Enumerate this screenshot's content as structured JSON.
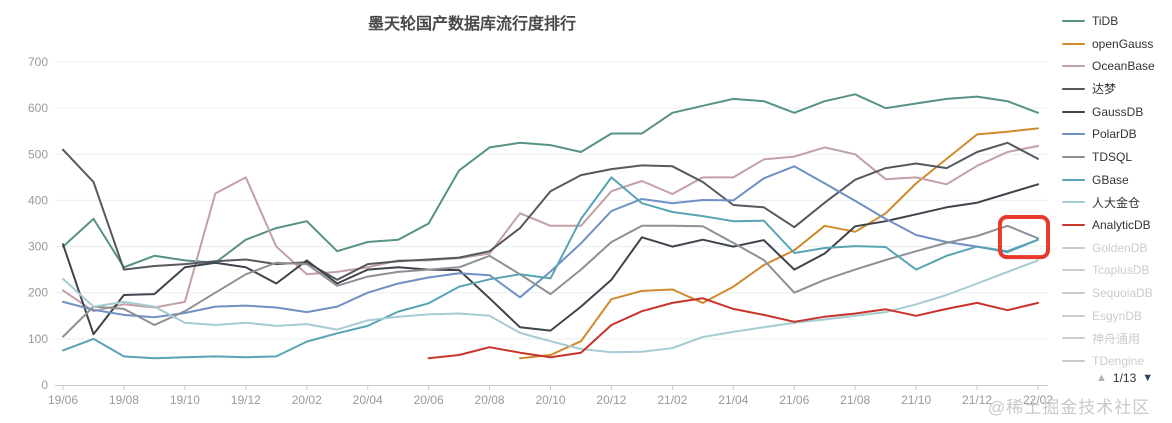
{
  "title": "墨天轮国产数据库流行度排行",
  "watermark": "@稀土掘金技术社区",
  "pagination": {
    "up_icon": "▲",
    "current_page": "1/13",
    "down_icon": "▼"
  },
  "colors": {
    "axis_label": "#999999",
    "axis_line": "#cccccc",
    "grid_line": "#e9edf1",
    "legend_text": "#333333",
    "legend_disabled": "#c9cccf",
    "highlight_box": "#e6392c",
    "pager_up": "#aab0b6",
    "pager_down": "#2e4464"
  },
  "chart_data": {
    "type": "line",
    "title": "墨天轮国产数据库流行度排行",
    "xlabel": "",
    "ylabel": "",
    "ylim": [
      0,
      700
    ],
    "y_ticks": [
      0,
      100,
      200,
      300,
      400,
      500,
      600,
      700
    ],
    "grid": true,
    "legend_position": "right",
    "x": [
      "19/06",
      "19/07",
      "19/08",
      "19/09",
      "19/10",
      "19/11",
      "19/12",
      "20/01",
      "20/02",
      "20/03",
      "20/04",
      "20/05",
      "20/06",
      "20/07",
      "20/08",
      "20/09",
      "20/10",
      "20/11",
      "20/12",
      "21/01",
      "21/02",
      "21/03",
      "21/04",
      "21/05",
      "21/06",
      "21/07",
      "21/08",
      "21/09",
      "21/10",
      "21/11",
      "21/12",
      "22/01",
      "22/02"
    ],
    "x_tick_labels": [
      "19/06",
      "19/08",
      "19/10",
      "19/12",
      "20/02",
      "20/04",
      "20/06",
      "20/08",
      "20/10",
      "20/12",
      "21/02",
      "21/04",
      "21/06",
      "21/08",
      "21/10",
      "21/12",
      "22/02"
    ],
    "highlight": {
      "color": "#e6392c",
      "month_index_range": [
        30.75,
        32.33
      ],
      "value_range": [
        277,
        364
      ],
      "note": "red rounded rectangle annotation near 22/02 around value 310"
    },
    "series": [
      {
        "name": "TiDB",
        "color": "#569287",
        "disabled": false,
        "values": [
          300,
          360,
          255,
          280,
          270,
          265,
          315,
          340,
          355,
          290,
          310,
          315,
          350,
          465,
          515,
          525,
          520,
          505,
          545,
          545,
          590,
          605,
          620,
          615,
          590,
          615,
          630,
          600,
          610,
          620,
          625,
          615,
          590
        ]
      },
      {
        "name": "openGauss",
        "color": "#d08a2c",
        "disabled": false,
        "values": [
          null,
          null,
          null,
          null,
          null,
          null,
          null,
          null,
          null,
          null,
          null,
          null,
          null,
          null,
          null,
          58,
          65,
          95,
          186,
          204,
          207,
          178,
          213,
          260,
          292,
          345,
          332,
          372,
          437,
          490,
          543,
          549,
          556
        ]
      },
      {
        "name": "OceanBase",
        "color": "#c2a0a6",
        "disabled": false,
        "values": [
          205,
          160,
          175,
          168,
          180,
          415,
          450,
          300,
          240,
          245,
          255,
          270,
          270,
          275,
          285,
          372,
          345,
          345,
          420,
          442,
          414,
          450,
          450,
          489,
          495,
          515,
          500,
          446,
          450,
          435,
          475,
          505,
          518
        ]
      },
      {
        "name": "达梦",
        "color": "#55585f",
        "disabled": false,
        "values": [
          510,
          440,
          250,
          258,
          262,
          268,
          272,
          262,
          266,
          228,
          262,
          268,
          272,
          276,
          290,
          340,
          420,
          455,
          468,
          476,
          474,
          440,
          390,
          385,
          342,
          395,
          445,
          470,
          480,
          470,
          505,
          525,
          490
        ]
      },
      {
        "name": "GaussDB",
        "color": "#3f434b",
        "disabled": false,
        "values": [
          305,
          110,
          195,
          197,
          255,
          265,
          255,
          220,
          270,
          220,
          250,
          255,
          250,
          249,
          188,
          125,
          118,
          170,
          228,
          320,
          300,
          315,
          300,
          314,
          250,
          285,
          344,
          355,
          370,
          385,
          395,
          415,
          435
        ]
      },
      {
        "name": "PolarDB",
        "color": "#6e90c3",
        "disabled": false,
        "values": [
          180,
          163,
          152,
          147,
          156,
          170,
          172,
          168,
          158,
          170,
          200,
          220,
          233,
          242,
          238,
          190,
          246,
          307,
          377,
          403,
          394,
          401,
          400,
          448,
          474,
          437,
          399,
          360,
          325,
          310,
          300,
          288,
          315
        ]
      },
      {
        "name": "TDSQL",
        "color": "#8d9094",
        "disabled": false,
        "values": [
          105,
          170,
          165,
          130,
          160,
          200,
          240,
          265,
          262,
          215,
          235,
          245,
          250,
          255,
          280,
          240,
          197,
          250,
          310,
          345,
          345,
          344,
          308,
          271,
          200,
          228,
          250,
          271,
          290,
          308,
          323,
          345,
          318
        ]
      },
      {
        "name": "GBase",
        "color": "#58a4b4",
        "disabled": false,
        "values": [
          75,
          100,
          62,
          58,
          60,
          62,
          60,
          62,
          94,
          112,
          128,
          159,
          177,
          213,
          229,
          240,
          231,
          360,
          450,
          394,
          375,
          366,
          355,
          356,
          286,
          297,
          301,
          299,
          250,
          280,
          300,
          290,
          315
        ]
      },
      {
        "name": "人大金仓",
        "color": "#a5cbd3",
        "disabled": false,
        "values": [
          230,
          170,
          180,
          170,
          135,
          130,
          135,
          128,
          132,
          120,
          140,
          148,
          153,
          155,
          150,
          113,
          95,
          78,
          71,
          72,
          80,
          104,
          115,
          125,
          135,
          142,
          150,
          158,
          175,
          195,
          220,
          245,
          270
        ]
      },
      {
        "name": "AnalyticDB",
        "color": "#c8342a",
        "disabled": false,
        "values": [
          null,
          null,
          null,
          null,
          null,
          null,
          null,
          null,
          null,
          null,
          null,
          null,
          58,
          65,
          82,
          70,
          60,
          70,
          130,
          160,
          178,
          188,
          165,
          152,
          137,
          148,
          155,
          164,
          150,
          165,
          178,
          162,
          178
        ]
      },
      {
        "name": "GoldenDB",
        "color": "#c9cccf",
        "disabled": true,
        "values": []
      },
      {
        "name": "TcaplusDB",
        "color": "#c9cccf",
        "disabled": true,
        "values": []
      },
      {
        "name": "SequoiaDB",
        "color": "#c9cccf",
        "disabled": true,
        "values": []
      },
      {
        "name": "EsgynDB",
        "color": "#c9cccf",
        "disabled": true,
        "values": []
      },
      {
        "name": "神舟通用",
        "color": "#c9cccf",
        "disabled": true,
        "values": []
      },
      {
        "name": "TDengine",
        "color": "#c9cccf",
        "disabled": true,
        "values": []
      }
    ]
  }
}
